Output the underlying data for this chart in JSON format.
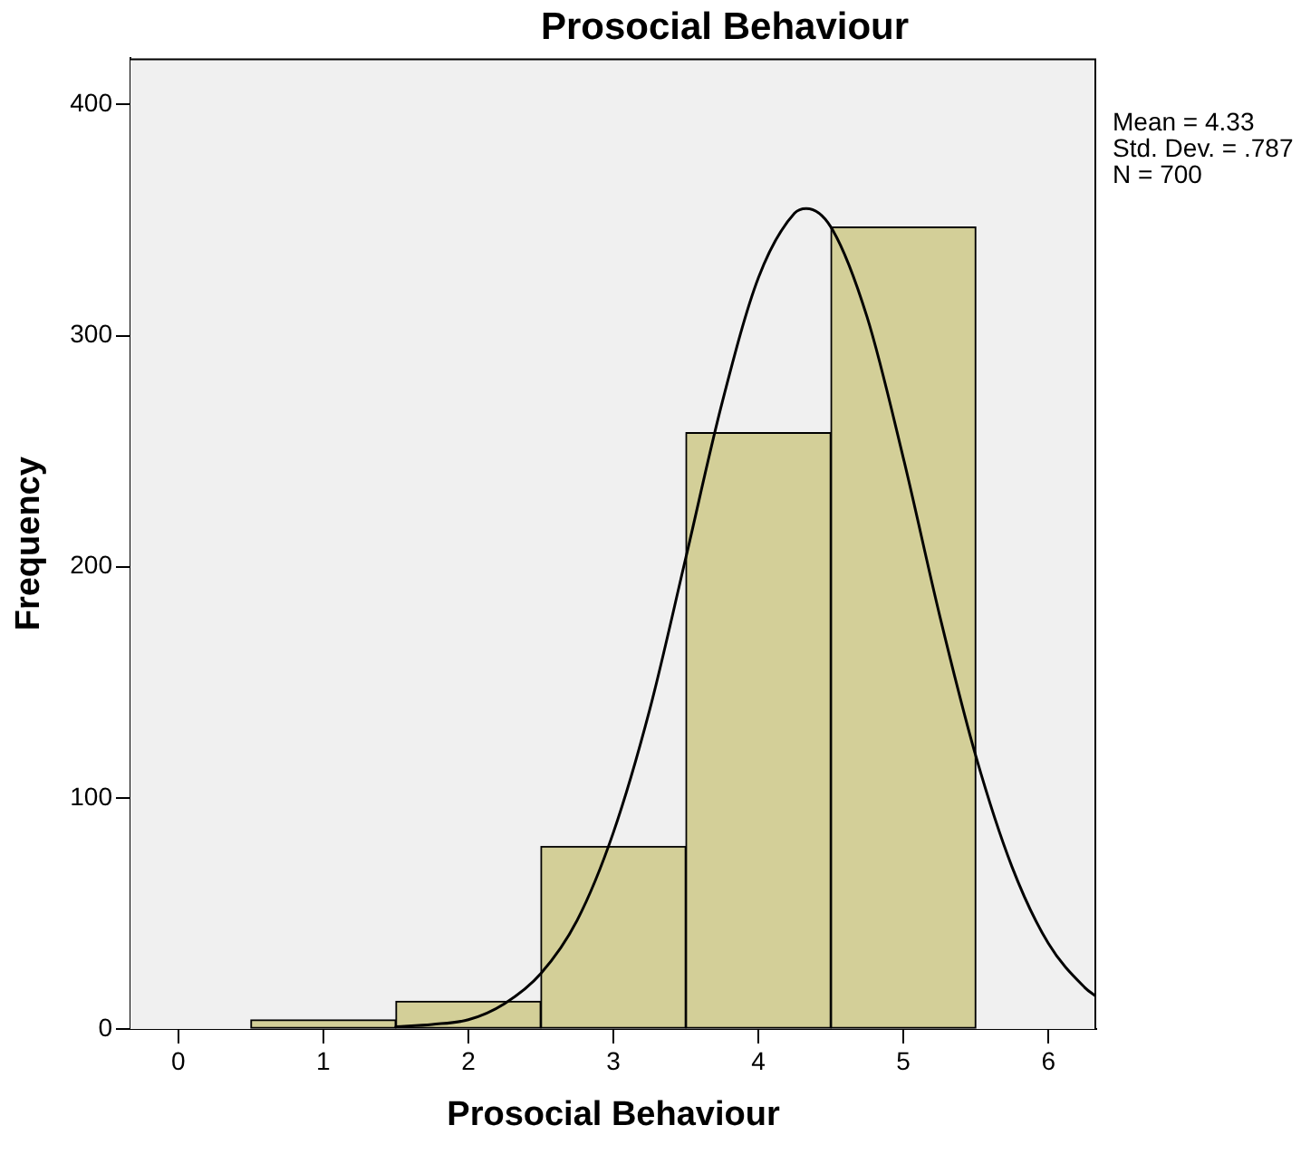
{
  "chart_data": {
    "type": "histogram",
    "title": "Prosocial Behaviour",
    "xlabel": "Prosocial Behaviour",
    "ylabel": "Frequency",
    "bins": [
      0.5,
      1.5,
      2.5,
      3.5,
      4.5,
      5.5
    ],
    "values": [
      4,
      12,
      79,
      258,
      347
    ],
    "color": "#d3cf98",
    "series": [
      {
        "type": "line",
        "marker": "none",
        "color": "#000000",
        "x": [
          1.5,
          1.75,
          2,
          2.25,
          2.5,
          2.75,
          3,
          3.25,
          3.5,
          3.75,
          4,
          4.25,
          4.33,
          4.5,
          4.75,
          5,
          5.25,
          5.5,
          5.75,
          6,
          6.25,
          6.33
        ],
        "values": [
          1,
          2,
          4,
          11,
          24,
          47,
          85,
          138,
          204,
          271,
          325,
          353,
          355,
          347,
          308,
          247,
          179,
          118,
          70,
          37,
          18,
          14
        ]
      }
    ],
    "xlim": [
      -0.33,
      6.33
    ],
    "ylim": [
      0,
      420
    ],
    "xticks": [
      0,
      1,
      2,
      3,
      4,
      5,
      6
    ],
    "yticks": [
      0,
      100,
      200,
      300,
      400
    ],
    "grid": false,
    "legend": false,
    "annotations": [
      "Mean = 4.33",
      "Std. Dev. = .787",
      "N = 700"
    ]
  }
}
